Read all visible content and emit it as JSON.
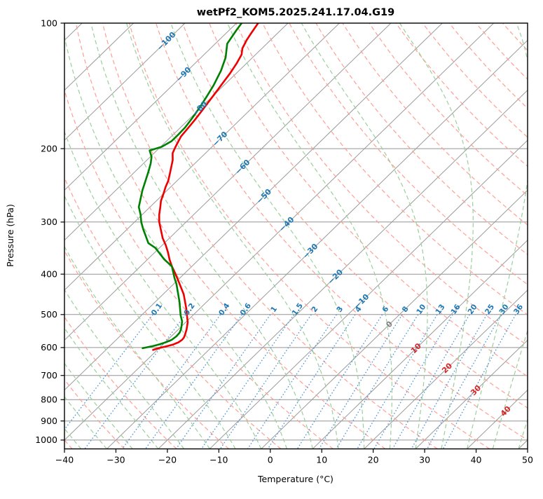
{
  "title": "wetPf2_KOM5.2025.241.17.04.G19",
  "chart_data": {
    "type": "skewt-log-p",
    "title": "wetPf2_KOM5.2025.241.17.04.G19",
    "xlabel": "Temperature (°C)",
    "ylabel": "Pressure (hPa)",
    "xlim": [
      -40,
      50
    ],
    "pressure_lim": [
      1050,
      100
    ],
    "skew": "isotherms at 45 degrees, ~83.4 C per decade of pressure",
    "x_ticks": [
      -40,
      -30,
      -20,
      -10,
      0,
      10,
      20,
      30,
      40,
      50
    ],
    "pressure_ticks": [
      100,
      200,
      300,
      400,
      500,
      600,
      700,
      800,
      900,
      1000
    ],
    "grid": true,
    "isotherms": {
      "start": -160,
      "end": 50,
      "step": 10
    },
    "isotherm_labels": [
      {
        "t": -100,
        "p": 110.5
      },
      {
        "t": -90,
        "p": 132.7
      },
      {
        "t": -80,
        "p": 160.4
      },
      {
        "t": -70,
        "p": 189.6
      },
      {
        "t": -60,
        "p": 221.4
      },
      {
        "t": -50,
        "p": 260.2
      },
      {
        "t": -40,
        "p": 303.7
      },
      {
        "t": -30,
        "p": 352.2
      },
      {
        "t": -20,
        "p": 406.0
      },
      {
        "t": -10,
        "p": 465.0
      },
      {
        "t": 0,
        "p": 528.1
      },
      {
        "t": 10,
        "p": 602.8
      },
      {
        "t": 20,
        "p": 672.5
      },
      {
        "t": 30,
        "p": 759.9
      },
      {
        "t": 40,
        "p": 853.1
      }
    ],
    "dry_adiabats": {
      "theta_start": -40,
      "theta_end": 200,
      "step": 10,
      "ref_pressure": 1000
    },
    "moist_adiabats": {
      "t0_start": -40,
      "t0_end": 50,
      "step": 5,
      "start_pressure": 1050
    },
    "mixing_ratio_lines": {
      "values": [
        0.1,
        0.2,
        0.4,
        0.6,
        1,
        1.5,
        2,
        3,
        4,
        6,
        8,
        10,
        13,
        16,
        20,
        25,
        30,
        36
      ],
      "p_bottom": 1050,
      "p_top": 500,
      "label_pressure": 486
    },
    "series": [
      {
        "name": "temperature",
        "color": "#ee0000",
        "points": [
          [
            100,
            -85.8
          ],
          [
            106,
            -85.1
          ],
          [
            110,
            -84.6
          ],
          [
            115,
            -83.8
          ],
          [
            119,
            -82.7
          ],
          [
            125,
            -81.9
          ],
          [
            132,
            -81.2
          ],
          [
            139,
            -80.7
          ],
          [
            146,
            -80.2
          ],
          [
            154,
            -79.7
          ],
          [
            162,
            -79.2
          ],
          [
            171,
            -78.7
          ],
          [
            179,
            -78.4
          ],
          [
            187,
            -78.1
          ],
          [
            198,
            -77.1
          ],
          [
            205,
            -76.4
          ],
          [
            213,
            -75.0
          ],
          [
            229,
            -72.9
          ],
          [
            239,
            -71.7
          ],
          [
            247,
            -71.0
          ],
          [
            257,
            -70.0
          ],
          [
            267,
            -69.1
          ],
          [
            277,
            -67.9
          ],
          [
            288,
            -66.7
          ],
          [
            300,
            -65.2
          ],
          [
            312,
            -63.5
          ],
          [
            328,
            -61.3
          ],
          [
            341,
            -59.3
          ],
          [
            355,
            -57.4
          ],
          [
            369,
            -55.7
          ],
          [
            383,
            -53.9
          ],
          [
            400,
            -51.6
          ],
          [
            417,
            -49.5
          ],
          [
            447,
            -46.0
          ],
          [
            483,
            -42.7
          ],
          [
            522,
            -39.6
          ],
          [
            543,
            -38.4
          ],
          [
            560,
            -37.6
          ],
          [
            568,
            -37.3
          ],
          [
            575,
            -37.2
          ],
          [
            583,
            -37.4
          ],
          [
            590,
            -38.0
          ],
          [
            596,
            -39.0
          ],
          [
            602,
            -40.1
          ],
          [
            608,
            -40.8
          ]
        ]
      },
      {
        "name": "dewpoint",
        "color": "#008000",
        "points": [
          [
            100,
            -89.0
          ],
          [
            104,
            -88.6
          ],
          [
            112,
            -87.7
          ],
          [
            121,
            -85.2
          ],
          [
            130,
            -83.5
          ],
          [
            141,
            -82.0
          ],
          [
            150,
            -81.1
          ],
          [
            159,
            -80.3
          ],
          [
            169,
            -79.6
          ],
          [
            178,
            -79.1
          ],
          [
            185,
            -79.0
          ],
          [
            192,
            -79.0
          ],
          [
            198,
            -79.8
          ],
          [
            202,
            -81.4
          ],
          [
            209,
            -79.8
          ],
          [
            217,
            -78.6
          ],
          [
            227,
            -77.4
          ],
          [
            252,
            -74.8
          ],
          [
            276,
            -72.2
          ],
          [
            288,
            -70.3
          ],
          [
            300,
            -68.7
          ],
          [
            312,
            -66.9
          ],
          [
            337,
            -63.1
          ],
          [
            346,
            -60.8
          ],
          [
            357,
            -58.8
          ],
          [
            369,
            -56.7
          ],
          [
            383,
            -53.9
          ],
          [
            409,
            -51.0
          ],
          [
            422,
            -49.5
          ],
          [
            465,
            -45.4
          ],
          [
            502,
            -42.4
          ],
          [
            519,
            -40.9
          ],
          [
            532,
            -40.1
          ],
          [
            543,
            -39.5
          ],
          [
            553,
            -39.1
          ],
          [
            564,
            -39.0
          ],
          [
            575,
            -39.2
          ],
          [
            583,
            -39.9
          ],
          [
            590,
            -40.8
          ],
          [
            596,
            -41.8
          ],
          [
            600,
            -42.7
          ],
          [
            602,
            -43.2
          ]
        ]
      }
    ],
    "colors": {
      "grid_gray": "#949494",
      "isotherm_gray": "#9b9b9b",
      "dry_adiabat": "#ff9f94",
      "moist_adiabat": "#9ccf9c",
      "mixing_line": "#4d94d8",
      "label_negative": "#1f77b4",
      "label_zero": "#808080",
      "label_positive": "#d62728",
      "mixing_label": "#1f77b4",
      "temperature_line": "#ee0000",
      "dewpoint_line": "#008000",
      "spine": "#000000"
    }
  }
}
